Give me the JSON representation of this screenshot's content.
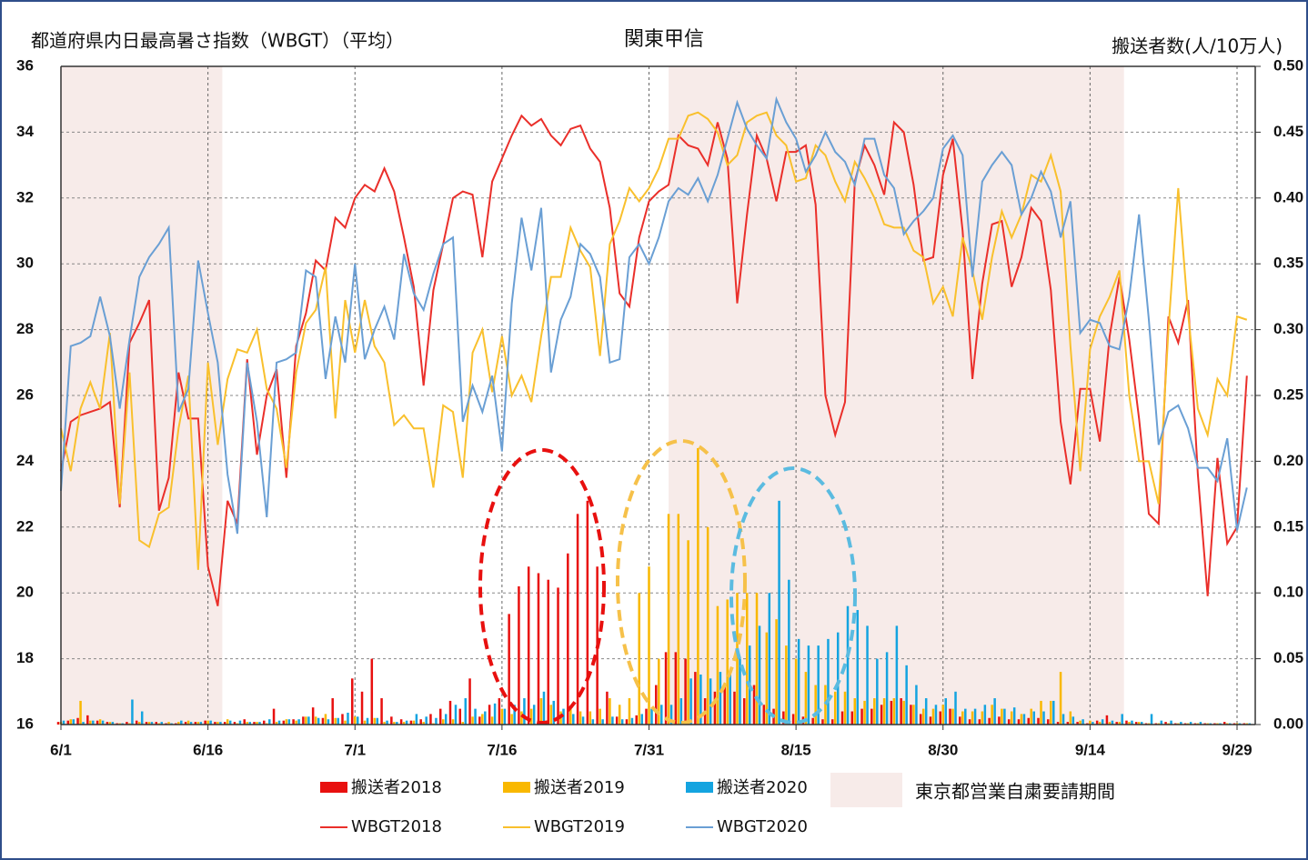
{
  "chart_data": {
    "type": "combo",
    "title": "関東甲信",
    "y_label": "都道府県内日最高暑さ指数（WBGT）（平均）",
    "y2_label": "搬送者数(人/10万人)",
    "categories": [
      "6/1",
      null,
      null,
      null,
      null,
      null,
      null,
      null,
      null,
      null,
      null,
      null,
      null,
      null,
      null,
      "6/16",
      null,
      null,
      null,
      null,
      null,
      null,
      null,
      null,
      null,
      null,
      null,
      null,
      null,
      null,
      "7/1",
      null,
      null,
      null,
      null,
      null,
      null,
      null,
      null,
      null,
      null,
      null,
      null,
      null,
      null,
      "7/16",
      null,
      null,
      null,
      null,
      null,
      null,
      null,
      null,
      null,
      null,
      null,
      null,
      null,
      null,
      "7/31",
      null,
      null,
      null,
      null,
      null,
      null,
      null,
      null,
      null,
      null,
      null,
      null,
      null,
      null,
      "8/15",
      null,
      null,
      null,
      null,
      null,
      null,
      null,
      null,
      null,
      null,
      null,
      null,
      null,
      null,
      "8/30",
      null,
      null,
      null,
      null,
      null,
      null,
      null,
      null,
      null,
      null,
      null,
      null,
      null,
      null,
      "9/14",
      null,
      null,
      null,
      null,
      null,
      null,
      null,
      null,
      null,
      null,
      null,
      null,
      null,
      null,
      "9/29",
      null
    ],
    "ylim": [
      16,
      36
    ],
    "yticks": [
      16,
      18,
      20,
      22,
      24,
      26,
      28,
      30,
      32,
      34,
      36
    ],
    "y2lim": [
      0,
      0.5
    ],
    "y2ticks": [
      {
        "value": 0,
        "label": "0.00"
      },
      {
        "value": 0.05,
        "label": "0.05"
      },
      {
        "value": 0.1,
        "label": "0.10"
      },
      {
        "value": 0.15,
        "label": "0.15"
      },
      {
        "value": 0.2,
        "label": "0.20"
      },
      {
        "value": 0.25,
        "label": "0.25"
      },
      {
        "value": 0.3,
        "label": "0.30"
      },
      {
        "value": 0.35,
        "label": "0.35"
      },
      {
        "value": 0.4,
        "label": "0.40"
      },
      {
        "value": 0.45,
        "label": "0.45"
      },
      {
        "value": 0.5,
        "label": "0.50"
      }
    ],
    "grid": true,
    "shaded_periods": [
      [
        0,
        16
      ],
      [
        62,
        108
      ]
    ],
    "shaded_color": "#f7ebe9",
    "shaded_label": "東京都営業自粛要請期間",
    "series": [
      {
        "name": "搬送者2018",
        "type": "bar",
        "axis": "y2",
        "color": "#e8100f",
        "values": [
          0.002,
          0.003,
          0.005,
          0.007,
          0.003,
          0.002,
          0.001,
          0.002,
          0.003,
          0.002,
          0.002,
          0.001,
          0.001,
          0.002,
          0.002,
          0.003,
          0.002,
          0.002,
          0.002,
          0.004,
          0.002,
          0.003,
          0.012,
          0.003,
          0.004,
          0.006,
          0.013,
          0.005,
          0.02,
          0.008,
          0.035,
          0.025,
          0.05,
          0.02,
          0.006,
          0.004,
          0.003,
          0.004,
          0.008,
          0.012,
          0.018,
          0.012,
          0.035,
          0.006,
          0.015,
          0.02,
          0.084,
          0.105,
          0.12,
          0.115,
          0.11,
          0.104,
          0.13,
          0.16,
          0.17,
          0.12,
          0.025,
          0.006,
          0.004,
          0.007,
          0.012,
          0.03,
          0.055,
          0.055,
          0.05,
          0.04,
          0.02,
          0.025,
          0.03,
          0.025,
          0.02,
          0.03,
          0.015,
          0.012,
          0.01,
          0.008,
          0.006,
          0.005,
          0.004,
          0.004,
          0.01,
          0.01,
          0.012,
          0.012,
          0.015,
          0.018,
          0.02,
          0.015,
          0.008,
          0.006,
          0.01,
          0.012,
          0.006,
          0.004,
          0.004,
          0.005,
          0.006,
          0.004,
          0.004,
          0.005,
          0.005,
          0.004,
          0.002,
          0.002,
          0.002,
          0.001,
          0.003,
          0.007,
          0.002,
          0.003,
          0.002,
          0.001,
          0.001,
          0.002,
          0.001,
          0.001,
          0.001,
          0.001,
          0.001,
          0.002,
          0.001,
          0.001
        ]
      },
      {
        "name": "搬送者2019",
        "type": "bar",
        "axis": "y2",
        "color": "#f9b800",
        "values": [
          0.002,
          0.004,
          0.018,
          0.003,
          0.004,
          0.002,
          0.001,
          0.001,
          0.002,
          0.002,
          0.001,
          0.002,
          0.002,
          0.003,
          0.002,
          0.003,
          0.002,
          0.004,
          0.001,
          0.002,
          0.002,
          0.001,
          0.002,
          0.004,
          0.003,
          0.006,
          0.006,
          0.008,
          0.005,
          0.003,
          0.006,
          0.003,
          0.005,
          0.002,
          0.002,
          0.002,
          0.003,
          0.002,
          0.001,
          0.004,
          0.004,
          0.002,
          0.006,
          0.008,
          0.006,
          0.012,
          0.008,
          0.01,
          0.012,
          0.02,
          0.015,
          0.01,
          0.012,
          0.01,
          0.01,
          0.012,
          0.02,
          0.015,
          0.02,
          0.1,
          0.12,
          0.05,
          0.16,
          0.16,
          0.14,
          0.21,
          0.15,
          0.09,
          0.095,
          0.1,
          0.1,
          0.1,
          0.07,
          0.08,
          0.06,
          0.05,
          0.04,
          0.03,
          0.03,
          0.025,
          0.025,
          0.02,
          0.018,
          0.02,
          0.02,
          0.02,
          0.018,
          0.015,
          0.012,
          0.012,
          0.015,
          0.012,
          0.01,
          0.01,
          0.01,
          0.015,
          0.012,
          0.01,
          0.008,
          0.012,
          0.018,
          0.018,
          0.04,
          0.01,
          0.003,
          0.003,
          0.002,
          0.002,
          0.002,
          0.002,
          0.002,
          0.001,
          0.001,
          0.001,
          0.001,
          0.001,
          0.001,
          0.001,
          0.001,
          0.001,
          0.001,
          0.001
        ]
      },
      {
        "name": "搬送者2020",
        "type": "bar",
        "axis": "y2",
        "color": "#14a4e0",
        "values": [
          0.003,
          0.004,
          0.002,
          0.003,
          0.003,
          0.002,
          0.001,
          0.019,
          0.01,
          0.002,
          0.002,
          0.001,
          0.003,
          0.002,
          0.002,
          0.003,
          0.002,
          0.003,
          0.003,
          0.002,
          0.002,
          0.004,
          0.003,
          0.004,
          0.004,
          0.006,
          0.005,
          0.004,
          0.005,
          0.009,
          0.006,
          0.005,
          0.005,
          0.003,
          0.002,
          0.003,
          0.008,
          0.006,
          0.005,
          0.008,
          0.015,
          0.02,
          0.012,
          0.01,
          0.016,
          0.012,
          0.015,
          0.02,
          0.015,
          0.025,
          0.018,
          0.012,
          0.008,
          0.006,
          0.004,
          0.004,
          0.006,
          0.004,
          0.005,
          0.008,
          0.012,
          0.015,
          0.015,
          0.02,
          0.035,
          0.038,
          0.035,
          0.04,
          0.038,
          0.05,
          0.06,
          0.075,
          0.1,
          0.17,
          0.11,
          0.065,
          0.06,
          0.06,
          0.065,
          0.07,
          0.09,
          0.087,
          0.075,
          0.05,
          0.055,
          0.075,
          0.045,
          0.03,
          0.02,
          0.015,
          0.02,
          0.025,
          0.012,
          0.012,
          0.015,
          0.02,
          0.012,
          0.013,
          0.008,
          0.01,
          0.01,
          0.018,
          0.008,
          0.006,
          0.004,
          0.002,
          0.004,
          0.003,
          0.008,
          0.003,
          0.002,
          0.008,
          0.003,
          0.003,
          0.002,
          0.002,
          0.002,
          0.001,
          0.001,
          0.001,
          0.001,
          0.001
        ]
      },
      {
        "name": "WBGT2018",
        "type": "line",
        "color": "#ea2f2a",
        "values": [
          23.7,
          25.2,
          25.4,
          25.5,
          25.6,
          25.8,
          22.6,
          27.6,
          28.2,
          28.9,
          22.5,
          23.5,
          26.7,
          25.3,
          25.3,
          20.8,
          19.6,
          22.8,
          22.1,
          27.1,
          24.2,
          26.0,
          26.8,
          23.5,
          27.5,
          28.5,
          30.1,
          29.8,
          31.4,
          31.1,
          32.0,
          32.4,
          32.2,
          32.9,
          32.2,
          30.8,
          29.3,
          26.3,
          29.2,
          30.6,
          32.0,
          32.2,
          32.1,
          30.2,
          32.5,
          33.2,
          33.9,
          34.5,
          34.2,
          34.4,
          33.9,
          33.6,
          34.1,
          34.2,
          33.5,
          33.1,
          31.7,
          29.1,
          28.7,
          30.8,
          31.9,
          32.2,
          32.4,
          33.9,
          33.6,
          33.5,
          33.0,
          34.3,
          33.2,
          28.8,
          31.5,
          33.9,
          33.2,
          31.9,
          33.4,
          33.4,
          33.6,
          31.8,
          26.0,
          24.8,
          25.8,
          32.5,
          33.6,
          33.0,
          32.1,
          34.3,
          34.0,
          32.4,
          30.1,
          30.2,
          32.7,
          33.8,
          31.0,
          26.5,
          29.4,
          31.2,
          31.3,
          29.3,
          30.2,
          31.7,
          31.3,
          29.2,
          25.2,
          23.3,
          26.2,
          26.2,
          24.6,
          27.8,
          29.6,
          27.7,
          25.3,
          22.4,
          22.1,
          28.4,
          27.6,
          28.9,
          23.6,
          19.9,
          24.1,
          21.5,
          22.0,
          26.6
        ]
      },
      {
        "name": "WBGT2019",
        "type": "line",
        "color": "#f9c02d",
        "values": [
          25.0,
          23.7,
          25.6,
          26.4,
          25.6,
          27.9,
          22.7,
          26.7,
          21.6,
          21.4,
          22.4,
          22.6,
          25.0,
          26.6,
          20.7,
          27.0,
          24.5,
          26.5,
          27.4,
          27.3,
          28.0,
          26.2,
          25.6,
          23.8,
          26.7,
          28.2,
          28.6,
          29.9,
          25.3,
          28.9,
          27.3,
          28.9,
          27.5,
          27.0,
          25.1,
          25.4,
          25.0,
          25.0,
          23.2,
          25.7,
          25.5,
          23.5,
          27.3,
          28.0,
          26.1,
          27.8,
          26.0,
          26.6,
          25.8,
          27.8,
          29.6,
          29.6,
          31.1,
          30.4,
          29.9,
          27.2,
          30.6,
          31.3,
          32.3,
          31.9,
          32.3,
          32.9,
          33.8,
          33.8,
          34.5,
          34.6,
          34.4,
          34.0,
          33.0,
          33.3,
          34.3,
          34.5,
          34.6,
          33.9,
          33.6,
          32.5,
          32.6,
          33.6,
          33.3,
          32.5,
          31.9,
          33.1,
          32.6,
          32.0,
          31.2,
          31.1,
          31.1,
          30.4,
          30.2,
          28.8,
          29.3,
          28.4,
          30.8,
          29.8,
          28.3,
          30.2,
          31.6,
          30.8,
          31.5,
          32.7,
          32.5,
          33.3,
          32.2,
          27.5,
          23.7,
          27.4,
          28.4,
          29.0,
          29.8,
          26.0,
          24.0,
          24.0,
          22.7,
          28.0,
          32.3,
          28.5,
          25.6,
          24.8,
          26.5,
          26.0,
          28.4,
          28.3
        ]
      },
      {
        "name": "WBGT2020",
        "type": "line",
        "color": "#6a9fd4",
        "values": [
          23.1,
          27.5,
          27.6,
          27.8,
          29.0,
          27.8,
          25.6,
          27.7,
          29.6,
          30.2,
          30.6,
          31.1,
          25.5,
          26.2,
          30.1,
          28.5,
          27.0,
          23.6,
          21.8,
          27.0,
          25.2,
          22.3,
          27.0,
          27.1,
          27.3,
          29.8,
          29.6,
          26.5,
          28.4,
          27.0,
          30.0,
          27.1,
          28.0,
          28.7,
          27.7,
          30.3,
          29.1,
          28.6,
          29.7,
          30.6,
          30.8,
          25.2,
          26.3,
          25.5,
          26.6,
          24.3,
          28.8,
          31.4,
          29.8,
          31.7,
          26.7,
          28.3,
          29.0,
          30.6,
          30.3,
          29.6,
          27.0,
          27.1,
          30.2,
          30.6,
          30.0,
          30.8,
          31.9,
          32.3,
          32.1,
          32.6,
          31.9,
          32.7,
          33.8,
          34.9,
          34.1,
          33.6,
          33.2,
          35.0,
          34.3,
          33.8,
          32.8,
          33.3,
          34.0,
          33.4,
          33.1,
          32.4,
          33.8,
          33.8,
          32.7,
          32.3,
          30.9,
          31.3,
          31.6,
          32.0,
          33.5,
          33.9,
          33.3,
          29.6,
          32.5,
          33.0,
          33.4,
          33.0,
          31.5,
          32.0,
          32.8,
          32.2,
          30.8,
          31.9,
          27.9,
          28.3,
          28.2,
          27.5,
          27.4,
          29.0,
          31.5,
          28.3,
          24.5,
          25.5,
          25.7,
          25.0,
          23.8,
          23.8,
          23.4,
          24.7,
          21.9,
          23.2
        ]
      }
    ]
  }
}
